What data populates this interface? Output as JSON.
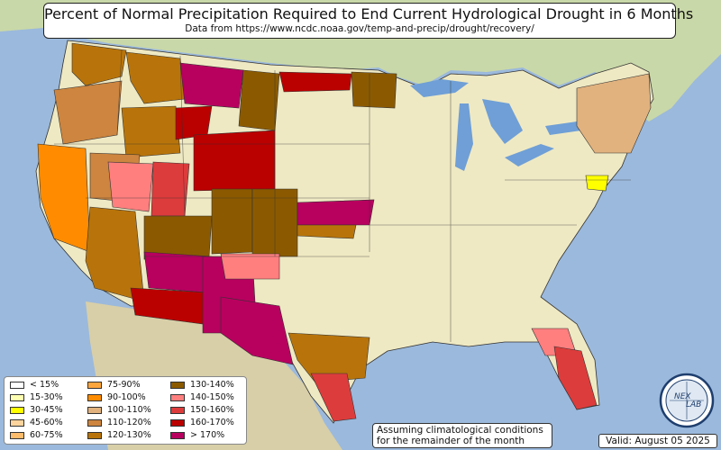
{
  "title": "Percent of Normal Precipitation Required to End Current Hydrological Drought in 6 Months",
  "subtitle": "Data from https://www.ncdc.noaa.gov/temp-and-precip/drought/recovery/",
  "note_line1": "Assuming climatological conditions",
  "note_line2": "for the remainder of the month",
  "valid": "Valid: August 05 2025",
  "logo_text": "NEX",
  "logo_text2": "LAB",
  "colors": {
    "ocean": "#9bb9dc",
    "land_base": "#efe9c3",
    "foreign_land": "#c9d8a8",
    "lakes": "#6f9fd6"
  },
  "legend": [
    {
      "label": "< 15%",
      "color": "#ffffff"
    },
    {
      "label": "15-30%",
      "color": "#ffffb2"
    },
    {
      "label": "30-45%",
      "color": "#ffff00"
    },
    {
      "label": "45-60%",
      "color": "#fdd49e"
    },
    {
      "label": "60-75%",
      "color": "#fdbb6c"
    },
    {
      "label": "75-90%",
      "color": "#fda53d"
    },
    {
      "label": "90-100%",
      "color": "#ff8c00"
    },
    {
      "label": "100-110%",
      "color": "#e1b27e"
    },
    {
      "label": "110-120%",
      "color": "#cd853f"
    },
    {
      "label": "120-130%",
      "color": "#b8740a"
    },
    {
      "label": "130-140%",
      "color": "#8b5a00"
    },
    {
      "label": "140-150%",
      "color": "#ff7f7f"
    },
    {
      "label": "150-160%",
      "color": "#dd3c3c"
    },
    {
      "label": "160-170%",
      "color": "#bb0000"
    },
    {
      "label": "> 170%",
      "color": "#b8005f"
    }
  ],
  "regions": [
    {
      "name": "montana-west",
      "cls": 9
    },
    {
      "name": "montana-central",
      "cls": 14
    },
    {
      "name": "montana-east",
      "cls": 10
    },
    {
      "name": "idaho-south",
      "cls": 9
    },
    {
      "name": "wyoming-north",
      "cls": 13
    },
    {
      "name": "wyoming-south",
      "cls": 13
    },
    {
      "name": "colorado-west",
      "cls": 10
    },
    {
      "name": "colorado-east",
      "cls": 10
    },
    {
      "name": "utah-north",
      "cls": 12
    },
    {
      "name": "utah-south",
      "cls": 10
    },
    {
      "name": "nevada-north",
      "cls": 8
    },
    {
      "name": "nevada-central",
      "cls": 11
    },
    {
      "name": "california-central",
      "cls": 6
    },
    {
      "name": "california-south",
      "cls": 9
    },
    {
      "name": "arizona-north",
      "cls": 14
    },
    {
      "name": "arizona-south",
      "cls": 13
    },
    {
      "name": "new-mexico-west",
      "cls": 14
    },
    {
      "name": "new-mexico-east",
      "cls": 11
    },
    {
      "name": "texas-west",
      "cls": 14
    },
    {
      "name": "texas-central",
      "cls": 9
    },
    {
      "name": "texas-south",
      "cls": 12
    },
    {
      "name": "kansas-north",
      "cls": 14
    },
    {
      "name": "oklahoma-north",
      "cls": 9
    },
    {
      "name": "north-dakota-east",
      "cls": 13
    },
    {
      "name": "minnesota-north",
      "cls": 10
    },
    {
      "name": "florida-south",
      "cls": 12
    },
    {
      "name": "florida-central",
      "cls": 11
    },
    {
      "name": "oregon-east",
      "cls": 8
    },
    {
      "name": "washington-east",
      "cls": 9
    },
    {
      "name": "northeast-coast",
      "cls": 7
    },
    {
      "name": "maryland",
      "cls": 2
    }
  ]
}
